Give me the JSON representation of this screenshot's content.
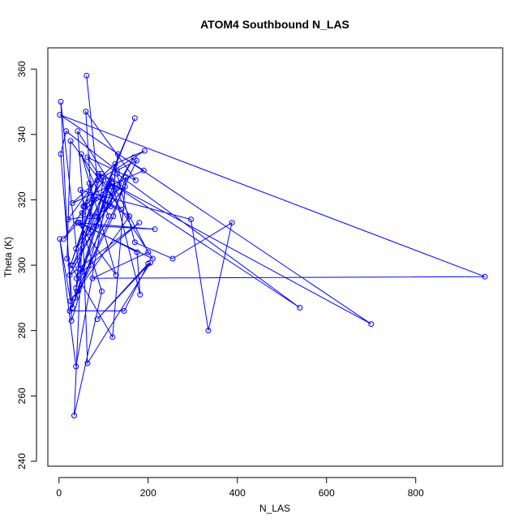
{
  "chart_data": {
    "type": "line",
    "title": "ATOM4 Southbound N_LAS",
    "xlabel": "N_LAS",
    "ylabel": "Theta (K)",
    "xlim": [
      -25,
      995
    ],
    "ylim": [
      238.5,
      366.5
    ],
    "xticks": [
      0,
      200,
      400,
      600,
      800
    ],
    "yticks": [
      240,
      260,
      280,
      300,
      320,
      340,
      360
    ],
    "grid": false,
    "legend": "none",
    "series_color": "#0000ff",
    "marker": "open-circle",
    "series": [
      {
        "x": [
          62,
          86,
          68,
          20,
          95,
          26,
          78,
          39,
          112,
          50,
          128,
          42,
          10,
          100,
          55,
          88,
          140,
          31,
          170,
          66,
          168,
          24,
          180,
          52,
          120,
          38,
          148,
          73,
          60,
          172,
          64,
          210,
          44,
          215,
          84,
          100,
          192,
          126,
          30,
          190,
          132,
          116,
          80,
          58,
          48,
          296,
          335,
          388,
          255,
          170,
          130,
          540,
          118,
          700,
          2,
          955,
          75,
          200,
          120,
          182,
          175,
          48,
          96,
          34,
          55,
          42,
          120,
          28,
          4,
          44,
          36,
          72,
          24,
          146,
          200,
          86,
          205,
          64,
          52,
          110,
          30,
          4,
          16,
          130,
          174,
          40,
          122,
          150,
          120,
          18,
          26,
          140,
          80,
          158,
          26,
          2,
          38,
          112,
          38,
          68
        ],
        "y": [
          358,
          326,
          315,
          314,
          328,
          300,
          320,
          296,
          315,
          334,
          297,
          313,
          308,
          326,
          318,
          328,
          325,
          300,
          345,
          310,
          333,
          297,
          313,
          298,
          327,
          305,
          324,
          319,
          347,
          326,
          333,
          302,
          313,
          311,
          312,
          327,
          335,
          331,
          319,
          329,
          334,
          318,
          315,
          318,
          323,
          314,
          280,
          313,
          302,
          307,
          328,
          287,
          325,
          282,
          346,
          296.5,
          296,
          304,
          325,
          291,
          304,
          313,
          292,
          254,
          318,
          341,
          324,
          283,
          350,
          299,
          290,
          300,
          286,
          286,
          300.5,
          283.5,
          300.8,
          270,
          316,
          324,
          287,
          334,
          341,
          329,
          332,
          292,
          315,
          327,
          278,
          302,
          338,
          317,
          321,
          315,
          289,
          308,
          269,
          325,
          293,
          325
        ]
      }
    ]
  }
}
